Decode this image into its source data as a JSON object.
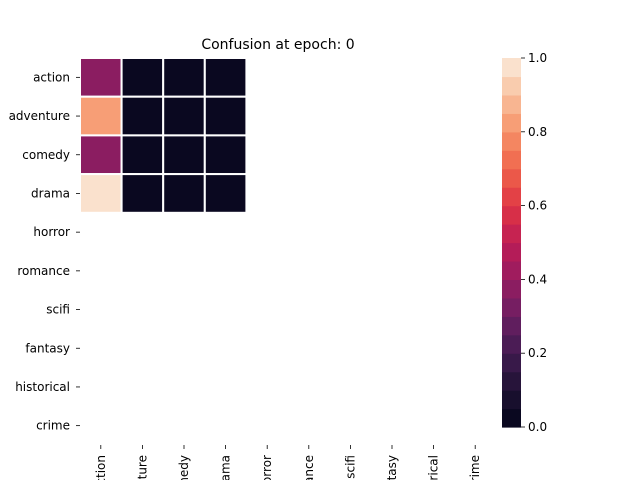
{
  "chart_data": {
    "type": "heatmap",
    "title": "Confusion at epoch: 0",
    "row_labels": [
      "action",
      "adventure",
      "comedy",
      "drama",
      "horror",
      "romance",
      "scifi",
      "fantasy",
      "historical",
      "crime"
    ],
    "col_labels": [
      "action",
      "enture",
      "omedy",
      "drama",
      "horror",
      "mance",
      "scifi",
      "ntasy",
      "torical",
      "crime"
    ],
    "values": [
      [
        0.38,
        0.0,
        0.0,
        0.0,
        null,
        null,
        null,
        null,
        null,
        null
      ],
      [
        0.8,
        0.0,
        0.0,
        0.0,
        null,
        null,
        null,
        null,
        null,
        null
      ],
      [
        0.38,
        0.0,
        0.0,
        0.0,
        null,
        null,
        null,
        null,
        null,
        null
      ],
      [
        1.0,
        0.0,
        0.0,
        0.0,
        null,
        null,
        null,
        null,
        null,
        null
      ],
      [
        null,
        null,
        null,
        null,
        null,
        null,
        null,
        null,
        null,
        null
      ],
      [
        null,
        null,
        null,
        null,
        null,
        null,
        null,
        null,
        null,
        null
      ],
      [
        null,
        null,
        null,
        null,
        null,
        null,
        null,
        null,
        null,
        null
      ],
      [
        null,
        null,
        null,
        null,
        null,
        null,
        null,
        null,
        null,
        null
      ],
      [
        null,
        null,
        null,
        null,
        null,
        null,
        null,
        null,
        null,
        null
      ],
      [
        null,
        null,
        null,
        null,
        null,
        null,
        null,
        null,
        null,
        null
      ]
    ],
    "colorbar": {
      "range": [
        0.0,
        1.0
      ],
      "ticks": [
        0.0,
        0.2,
        0.4,
        0.6,
        0.8,
        1.0
      ],
      "tick_labels": [
        "0.0",
        "0.2",
        "0.4",
        "0.6",
        "0.8",
        "1.0"
      ],
      "levels": 20,
      "colormap": "rocket"
    },
    "cell_border_color": "#ffffff",
    "grid": false
  }
}
